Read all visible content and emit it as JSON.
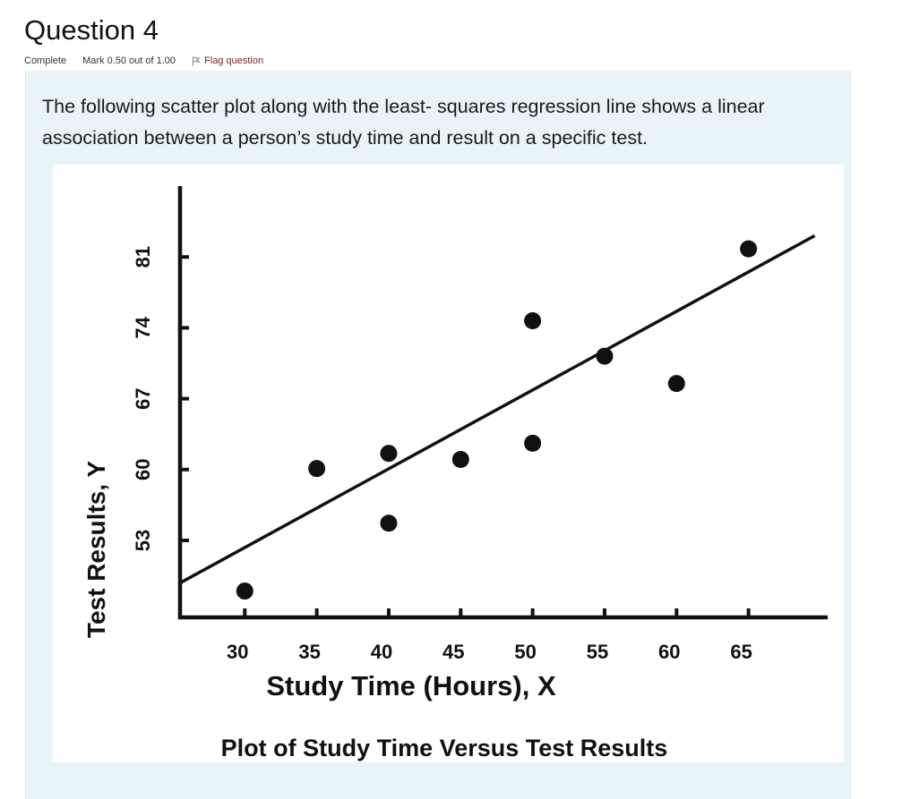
{
  "question": {
    "title": "Question 4",
    "state": "Complete",
    "mark": "Mark 0.50 out of 1.00",
    "flag_label": "Flag question",
    "text": "The following scatter plot along with the least- squares regression line shows a linear association between a person’s study time and result on a specific test."
  },
  "icons": {
    "flag": "flag-icon"
  },
  "colors": {
    "box_background": "#e8f4f8",
    "flag_link": "#7a1f2b"
  },
  "chart_data": {
    "type": "scatter",
    "title": "Plot of Study Time Versus Test Results",
    "xlabel": "Study Time (Hours), X",
    "ylabel": "Test Results, Y",
    "x_ticks": [
      30,
      35,
      40,
      45,
      50,
      55,
      60,
      65
    ],
    "y_ticks": [
      53,
      60,
      67,
      74,
      81
    ],
    "xlim": [
      25.5,
      70.5
    ],
    "ylim": [
      45.4,
      88
    ],
    "grid": false,
    "points": [
      {
        "x": 30,
        "y": 48
      },
      {
        "x": 35,
        "y": 60.1
      },
      {
        "x": 40,
        "y": 61.6
      },
      {
        "x": 40,
        "y": 54.7
      },
      {
        "x": 45,
        "y": 61
      },
      {
        "x": 50,
        "y": 74.7
      },
      {
        "x": 50,
        "y": 62.6
      },
      {
        "x": 55,
        "y": 71.2
      },
      {
        "x": 60,
        "y": 68.5
      },
      {
        "x": 65,
        "y": 81.8
      }
    ],
    "regression_line": {
      "x": [
        25.5,
        69.6
      ],
      "y": [
        48.8,
        83.1
      ]
    }
  }
}
